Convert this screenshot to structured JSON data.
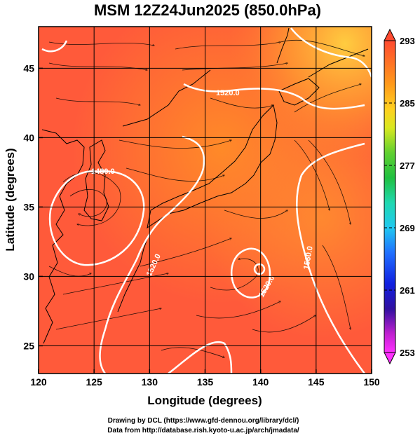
{
  "title": "MSM 12Z24Jun2025 (850.0hPa)",
  "map": {
    "xlabel": "Longitude (degrees)",
    "ylabel": "Latitude  (degrees)",
    "lon_range": [
      120,
      150
    ],
    "lat_range": [
      23,
      48
    ],
    "lon_ticks": [
      "120",
      "125",
      "130",
      "135",
      "140",
      "145",
      "150"
    ],
    "lat_ticks": [
      "25",
      "30",
      "35",
      "40",
      "45"
    ],
    "gridlines": true,
    "contour_labels": [
      "1520.0",
      "1480.0",
      "1520.0",
      "1520.0",
      "1560.0"
    ]
  },
  "colorbar": {
    "ticks": [
      "293",
      "285",
      "277",
      "269",
      "261",
      "253"
    ],
    "colors": {
      "top": "#ff5030",
      "orange": "#ff9a1a",
      "yellow": "#f0f020",
      "green": "#22cc44",
      "cyan": "#20d8e8",
      "blue": "#2040ff",
      "navy": "#2010a0",
      "magenta": "#ff20ff"
    }
  },
  "credits": {
    "line1": "Drawing by DCL (https://www.gfd-dennou.org/library/dcl/)",
    "line2": "Data from http://database.rish.kyoto-u.ac.jp/arch/jmadata/"
  }
}
